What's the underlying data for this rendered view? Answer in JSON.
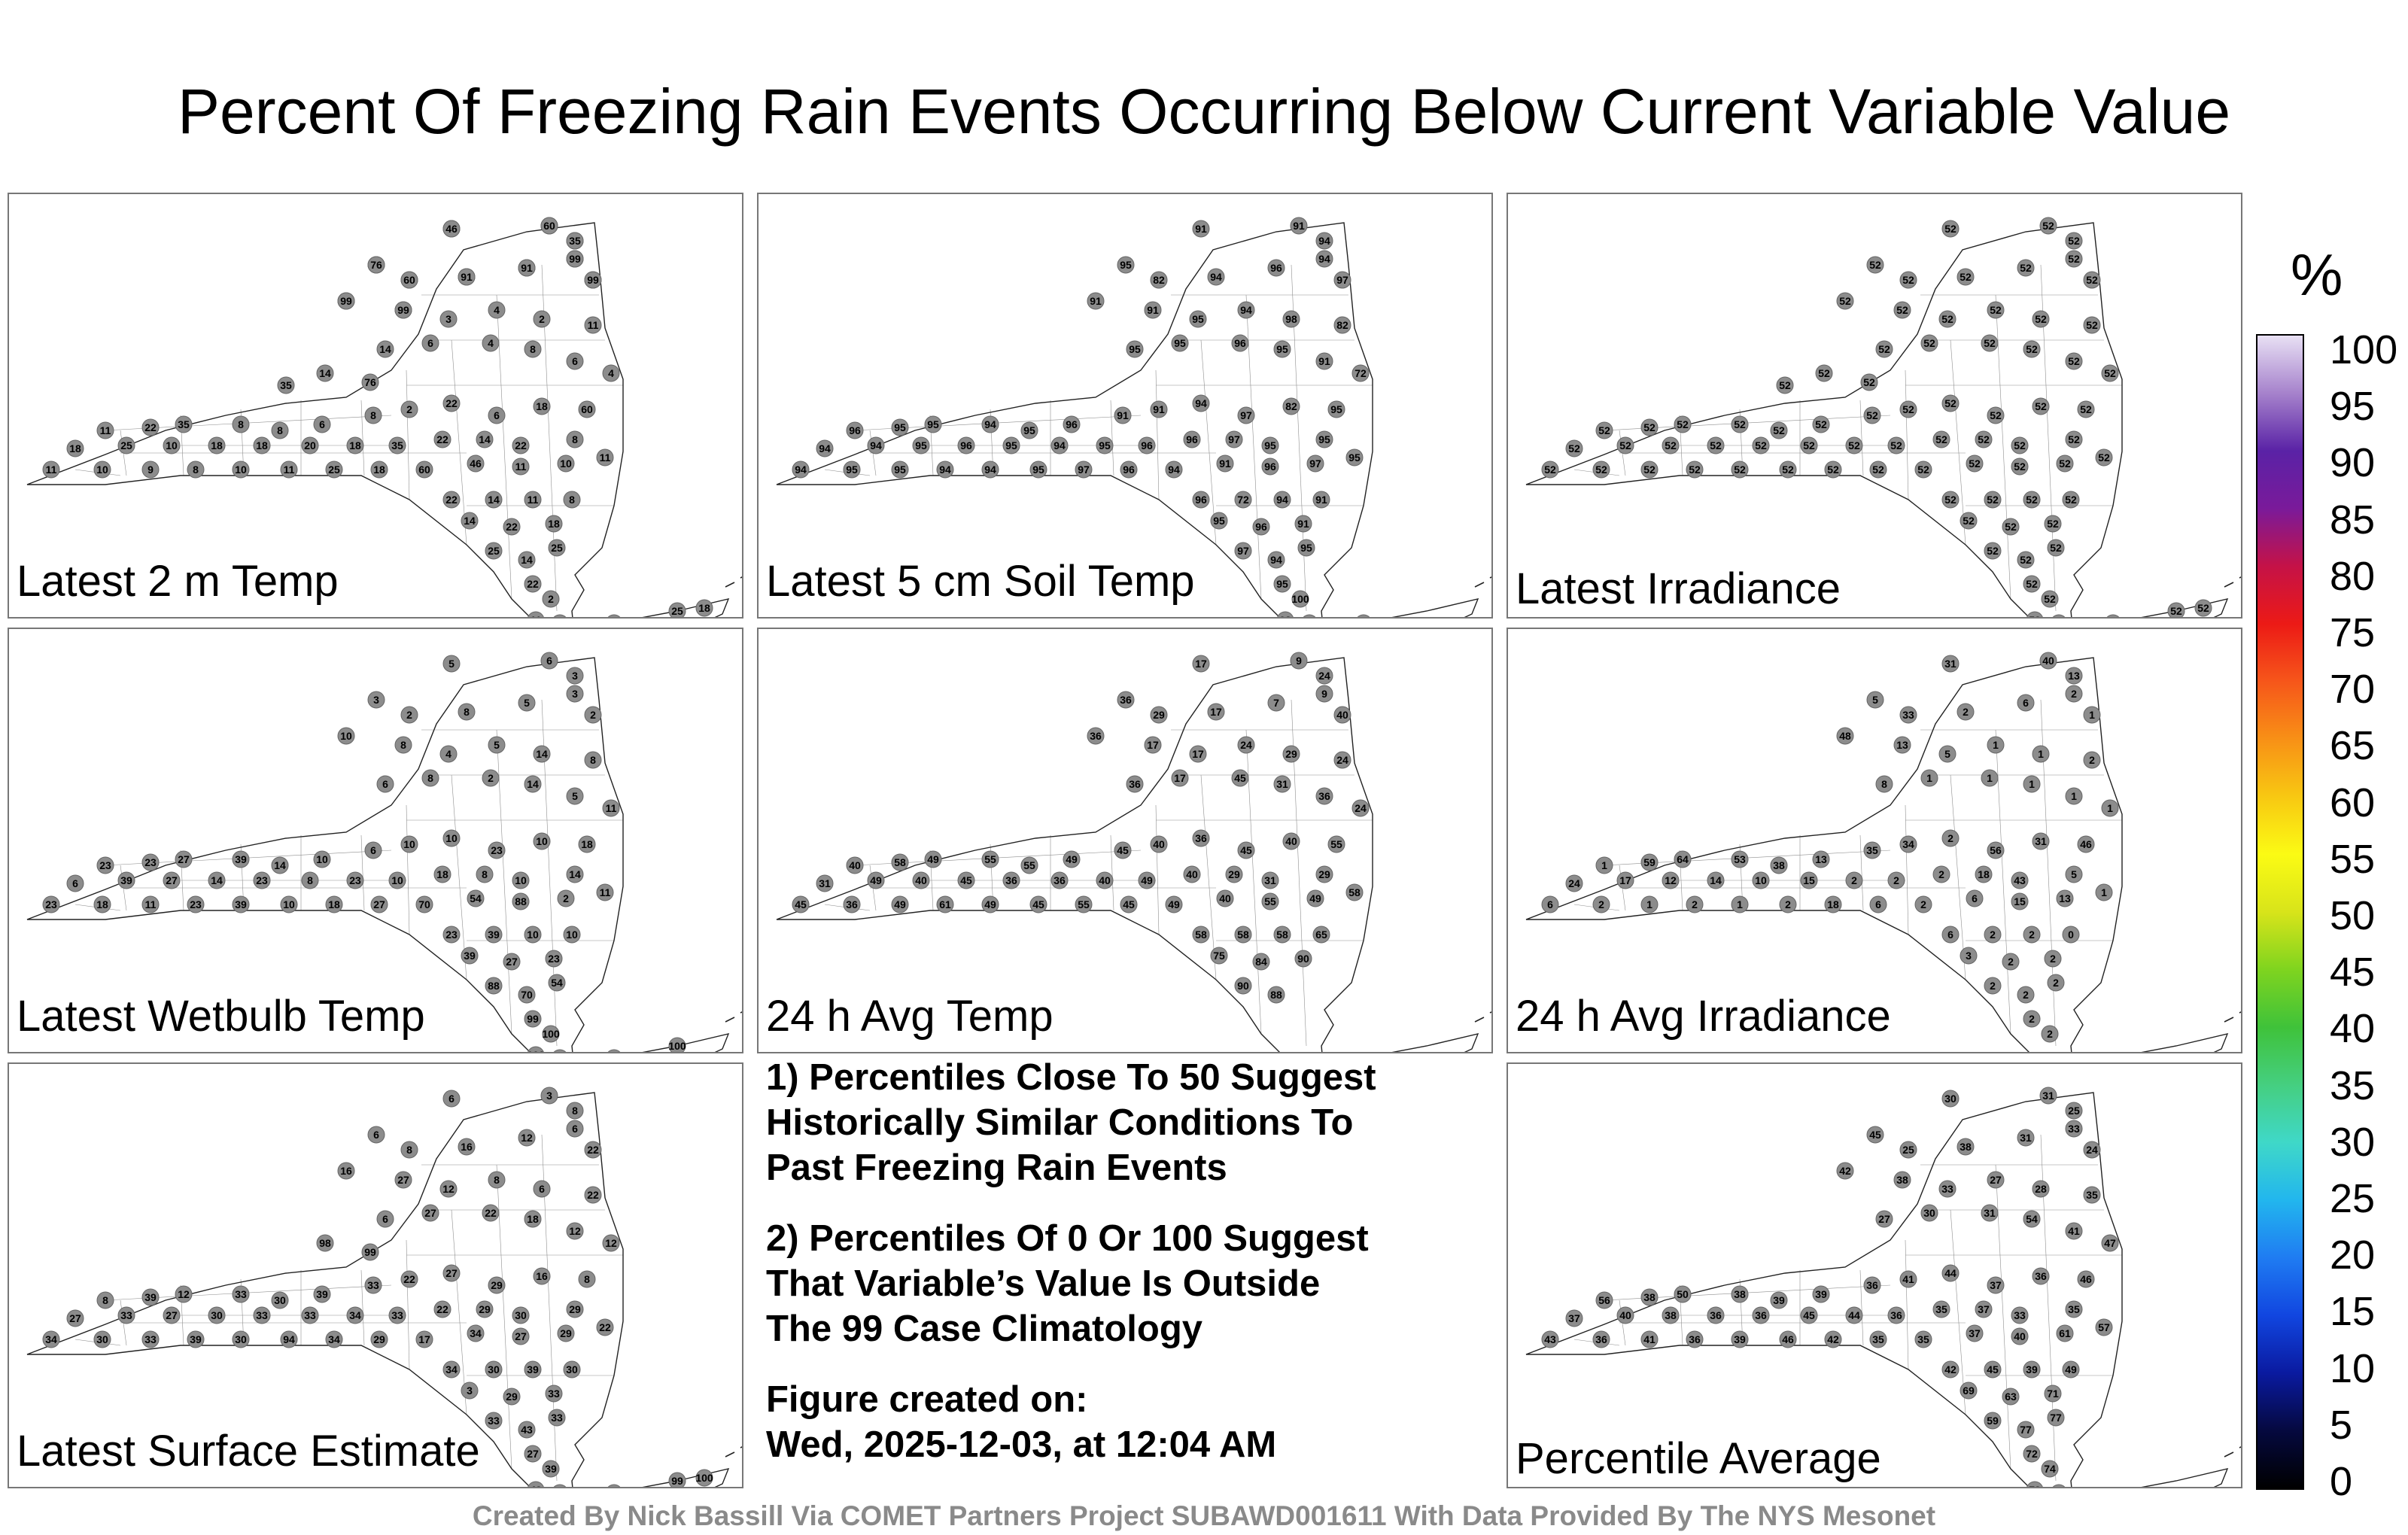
{
  "title": "Percent Of Freezing Rain Events Occurring Below Current Variable Value",
  "panels": [
    {
      "label": "Latest 2 m Temp",
      "scheme": "temp",
      "stations": [
        4,
        3,
        2,
        3,
        6,
        8,
        4,
        3,
        2,
        10,
        8,
        3,
        4,
        2,
        11,
        14,
        6,
        4,
        8,
        6,
        4,
        11,
        22,
        35,
        8,
        8,
        6,
        8,
        2,
        22,
        6,
        18,
        60,
        18,
        25,
        10,
        18,
        18,
        20,
        18,
        35,
        22,
        14,
        22,
        8,
        11,
        10,
        9,
        8,
        10,
        11,
        25,
        18,
        60,
        46,
        11,
        10,
        11,
        22,
        14,
        11,
        8,
        14,
        22,
        18,
        25,
        14,
        25,
        22,
        2,
        11,
        18,
        35,
        18,
        11,
        25,
        18,
        14,
        76,
        35,
        46,
        60,
        35,
        76,
        60,
        91,
        91,
        99,
        99,
        99,
        99
      ]
    },
    {
      "label": "Latest 5 cm Soil Temp",
      "scheme": "soil",
      "stations": [
        91,
        91,
        94,
        95,
        82,
        94,
        96,
        94,
        97,
        91,
        91,
        95,
        94,
        98,
        82,
        95,
        95,
        96,
        95,
        91,
        72,
        96,
        95,
        95,
        94,
        95,
        96,
        91,
        91,
        94,
        97,
        82,
        95,
        94,
        94,
        95,
        96,
        95,
        94,
        95,
        96,
        96,
        97,
        95,
        95,
        94,
        95,
        95,
        94,
        94,
        95,
        97,
        96,
        94,
        91,
        96,
        97,
        95,
        96,
        72,
        94,
        91,
        95,
        96,
        91,
        97,
        94,
        95,
        95,
        100,
        98,
        95,
        100,
        98,
        96
      ]
    },
    {
      "label": "Latest Irradiance",
      "scheme": "irr",
      "stations": [
        52,
        52,
        52,
        52,
        52,
        52,
        52,
        52,
        52,
        52,
        52,
        52,
        52,
        52,
        52,
        52,
        52,
        52,
        52,
        52,
        52,
        52,
        52,
        52,
        52,
        52,
        52,
        52,
        52,
        52,
        52,
        52,
        52,
        52,
        52,
        52,
        52,
        52,
        52,
        52,
        52,
        52,
        52,
        52,
        52,
        52,
        52,
        52,
        52,
        52,
        52,
        52,
        52,
        52,
        52,
        52,
        52,
        52,
        52,
        52,
        52,
        52,
        52,
        52,
        52,
        52,
        52,
        52,
        52,
        52,
        52,
        52,
        52,
        52,
        52,
        52,
        52,
        52,
        52,
        52
      ]
    },
    {
      "label": "Latest Wetbulb Temp",
      "scheme": "temp",
      "stations": [
        5,
        6,
        3,
        3,
        2,
        8,
        5,
        3,
        2,
        10,
        8,
        4,
        5,
        14,
        8,
        6,
        8,
        2,
        14,
        5,
        11,
        23,
        23,
        27,
        39,
        14,
        10,
        6,
        10,
        10,
        23,
        10,
        18,
        6,
        39,
        27,
        14,
        23,
        8,
        23,
        10,
        18,
        8,
        10,
        14,
        23,
        18,
        11,
        23,
        39,
        10,
        18,
        27,
        70,
        54,
        88,
        2,
        11,
        23,
        39,
        10,
        10,
        39,
        27,
        23,
        88,
        70,
        54,
        99,
        100,
        100,
        100,
        100,
        100,
        100,
        100
      ]
    },
    {
      "label": "24 h Avg Temp",
      "scheme": "avg",
      "stations": [
        17,
        9,
        24,
        36,
        29,
        17,
        7,
        9,
        40,
        36,
        17,
        17,
        24,
        29,
        24,
        36,
        17,
        45,
        31,
        36,
        24,
        40,
        58,
        49,
        55,
        55,
        49,
        45,
        40,
        36,
        45,
        40,
        55,
        31,
        49,
        40,
        45,
        36,
        36,
        40,
        49,
        40,
        29,
        31,
        29,
        45,
        36,
        49,
        61,
        49,
        45,
        55,
        45,
        49,
        40,
        55,
        49,
        58,
        58,
        58,
        58,
        65,
        75,
        84,
        90,
        90,
        88
      ]
    },
    {
      "label": "24 h Avg Irradiance",
      "scheme": "irr24",
      "stations": [
        31,
        40,
        13,
        5,
        33,
        2,
        6,
        2,
        1,
        48,
        13,
        5,
        1,
        1,
        2,
        8,
        1,
        1,
        1,
        1,
        1,
        1,
        59,
        64,
        53,
        38,
        13,
        35,
        34,
        2,
        56,
        31,
        46,
        24,
        17,
        12,
        14,
        10,
        15,
        2,
        2,
        2,
        18,
        43,
        5,
        6,
        2,
        1,
        2,
        1,
        2,
        18,
        6,
        2,
        6,
        15,
        13,
        1,
        6,
        2,
        2,
        0,
        3,
        2,
        2,
        2,
        2,
        2,
        2,
        2
      ]
    },
    {
      "label": "Latest Surface Estimate",
      "scheme": "surf",
      "stations": [
        6,
        3,
        8,
        6,
        8,
        16,
        12,
        6,
        22,
        16,
        27,
        12,
        8,
        6,
        22,
        6,
        27,
        22,
        18,
        12,
        12,
        8,
        39,
        12,
        33,
        30,
        39,
        33,
        22,
        27,
        29,
        16,
        8,
        27,
        33,
        27,
        30,
        33,
        33,
        34,
        33,
        22,
        29,
        30,
        29,
        34,
        30,
        33,
        39,
        30,
        94,
        34,
        29,
        17,
        34,
        27,
        29,
        22,
        34,
        30,
        39,
        30,
        3,
        29,
        33,
        33,
        43,
        33,
        27,
        39,
        43,
        39,
        69,
        62,
        83,
        99,
        100,
        98,
        99
      ]
    },
    {
      "label": "Percentile Average",
      "scheme": "avgpct",
      "stations": [
        30,
        31,
        25,
        45,
        25,
        38,
        31,
        33,
        24,
        42,
        38,
        33,
        27,
        28,
        35,
        27,
        30,
        31,
        54,
        41,
        47,
        56,
        38,
        50,
        38,
        39,
        39,
        36,
        41,
        44,
        37,
        36,
        46,
        37,
        40,
        38,
        36,
        36,
        45,
        44,
        36,
        35,
        37,
        33,
        35,
        43,
        36,
        41,
        36,
        39,
        46,
        42,
        35,
        35,
        37,
        40,
        61,
        57,
        42,
        45,
        39,
        49,
        69,
        63,
        71,
        59,
        77,
        77,
        72,
        74,
        73,
        77
      ]
    }
  ],
  "notes": [
    "1) Percentiles Close To 50 Suggest\nHistorically Similar Conditions To\nPast Freezing Rain Events",
    "2) Percentiles Of 0 Or 100 Suggest\nThat Variable’s Value Is Outside\nThe 99 Case Climatology",
    "Figure created on:\nWed, 2025-12-03, at 12:04 AM"
  ],
  "colorbar": {
    "unit": "%",
    "ticks": [
      "100",
      "95",
      "90",
      "85",
      "80",
      "75",
      "70",
      "65",
      "60",
      "55",
      "50",
      "45",
      "40",
      "35",
      "30",
      "25",
      "20",
      "15",
      "10",
      "5",
      "0"
    ],
    "stops": [
      "#000000",
      "#05093f",
      "#0a1aa0",
      "#1146e0",
      "#1f7cf2",
      "#22b6ee",
      "#3fd8c8",
      "#45cf80",
      "#3fc23a",
      "#7fd41f",
      "#d8e41a",
      "#fbfb14",
      "#f8c812",
      "#f89016",
      "#f6561a",
      "#ec1a16",
      "#c51247",
      "#7a1a9a",
      "#5a22a6",
      "#a682cc",
      "#e8e0f4"
    ]
  },
  "credit": "Created By Nick Bassill Via COMET Partners Project SUBAWD001611 With Data Provided By The NYS Mesonet"
}
